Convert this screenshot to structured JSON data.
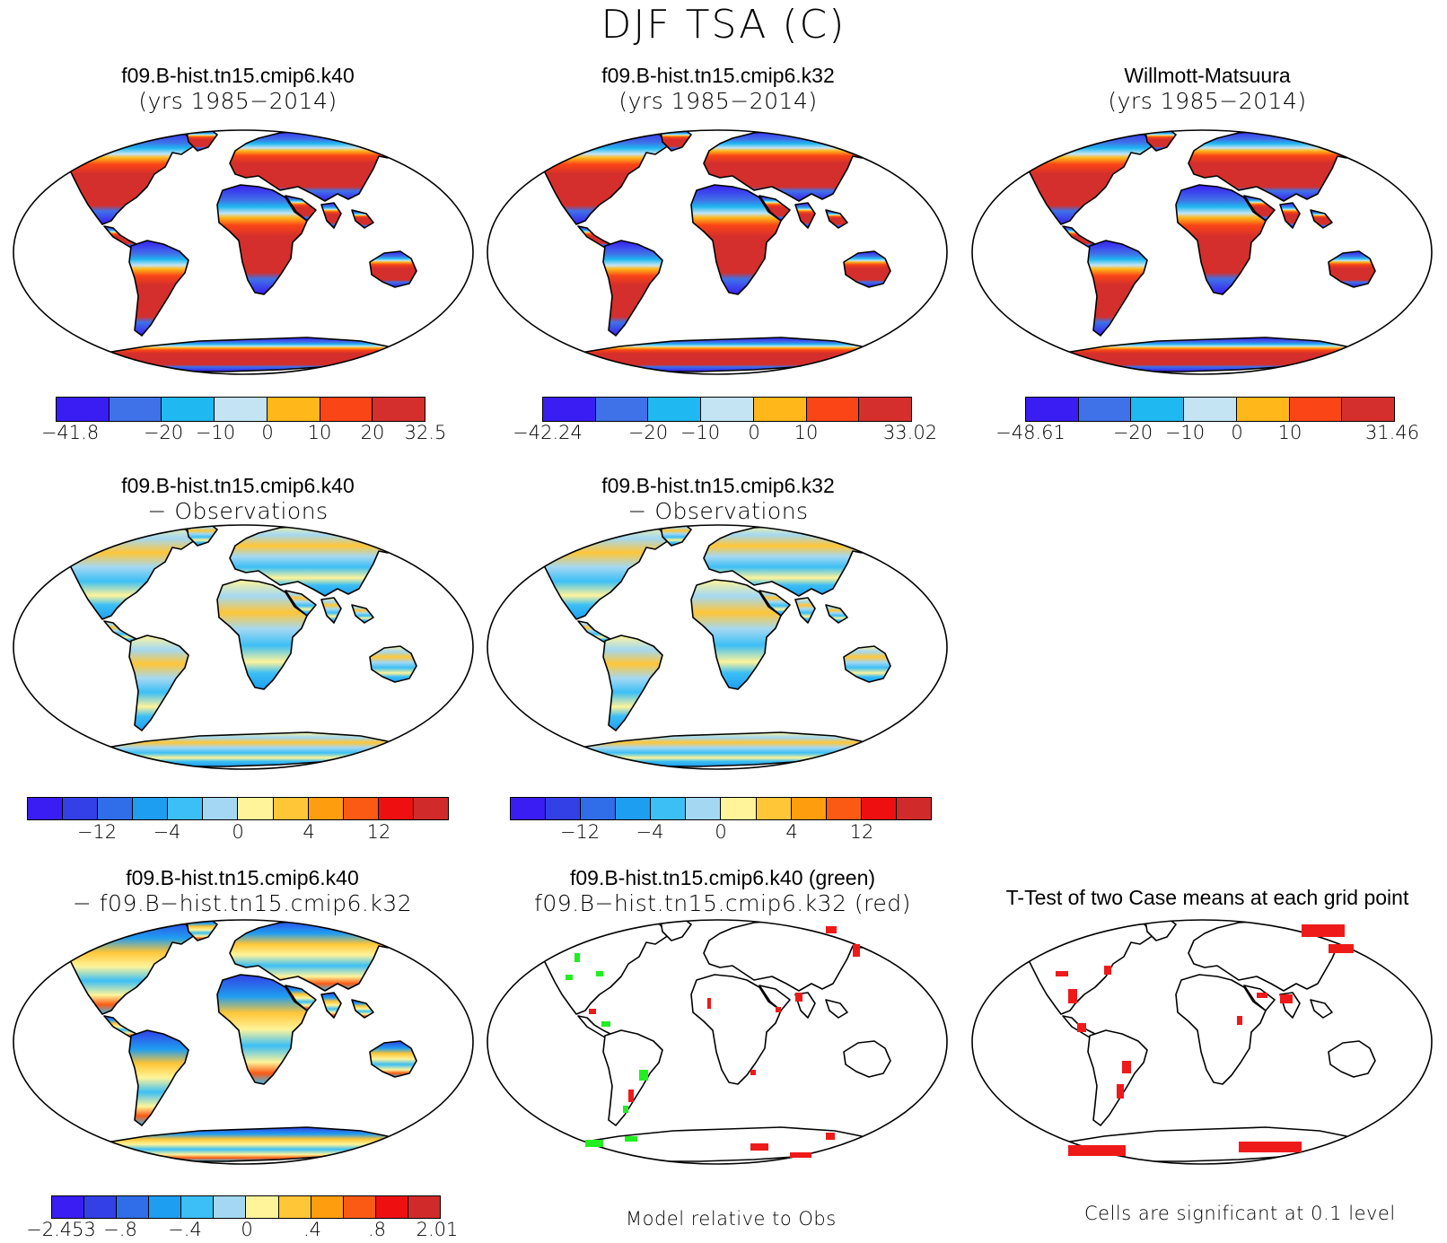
{
  "title": "DJF TSA (C)",
  "panels": {
    "p1": {
      "line1": "f09.B-hist.tn15.cmip6.k40",
      "line2": "(yrs 1985−2014)"
    },
    "p2": {
      "line1": "f09.B-hist.tn15.cmip6.k32",
      "line2": "(yrs 1985−2014)"
    },
    "p3": {
      "line1": "Willmott-Matsuura",
      "line2": "(yrs 1985−2014)"
    },
    "p4": {
      "line1": "f09.B-hist.tn15.cmip6.k40",
      "line2": "− Observations"
    },
    "p5": {
      "line1": "f09.B-hist.tn15.cmip6.k32",
      "line2": "− Observations"
    },
    "p6": {
      "line1": "f09.B-hist.tn15.cmip6.k40",
      "line2": "− f09.B−hist.tn15.cmip6.k32"
    },
    "p7": {
      "line1": "f09.B-hist.tn15.cmip6.k40 (green)",
      "line2": "f09.B−hist.tn15.cmip6.k32 (red)"
    },
    "p8": {
      "line1": "T-Test of two Case means at each grid point"
    }
  },
  "colorbars": {
    "abs_colors": [
      "#3a1df2",
      "#3f72e8",
      "#1fb8f0",
      "#c4e4f4",
      "#ffb71a",
      "#fa4516",
      "#d42f2c"
    ],
    "diff_colors": [
      "#3a1df2",
      "#3340e6",
      "#2f6ee8",
      "#1e9ef0",
      "#3cbff5",
      "#a4d8f2",
      "#fff49a",
      "#ffc637",
      "#fe9d0e",
      "#fb5a14",
      "#ee1010",
      "#d12a2a"
    ],
    "cb1": [
      "−41.8",
      "−20",
      "−10",
      "0",
      "10",
      "20",
      "32.5"
    ],
    "cb2": [
      "−42.24",
      "−20",
      "−10",
      "0",
      "10",
      "33.02"
    ],
    "cb3": [
      "−48.61",
      "−20",
      "−10",
      "0",
      "10",
      "31.46"
    ],
    "cb4": [
      "−12",
      "−4",
      "0",
      "4",
      "12"
    ],
    "cb5": [
      "−12",
      "−4",
      "0",
      "4",
      "12"
    ],
    "cb6": [
      "−2.453",
      "−.8",
      "−.4",
      "0",
      ".4",
      ".8",
      "2.01"
    ]
  },
  "notes": {
    "model_rel": "Model relative to Obs",
    "significance": "Cells are significant at 0.1 level"
  },
  "significance_colors": {
    "case1": "#22ee22",
    "case2": "#ee1a1a",
    "ttest": "#ee1a1a"
  }
}
